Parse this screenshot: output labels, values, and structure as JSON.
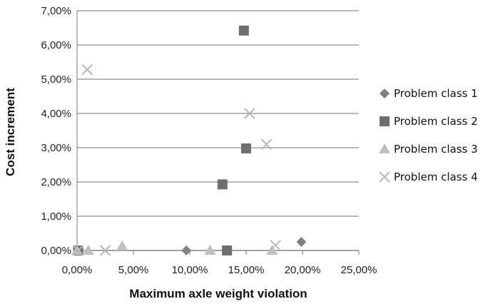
{
  "chart_data": {
    "type": "scatter",
    "title": "",
    "xlabel": "Maximum axle weight violation",
    "ylabel": "Cost increment",
    "xlim": [
      0,
      25
    ],
    "ylim": [
      0,
      7
    ],
    "x_ticks": [
      0,
      5,
      10,
      15,
      20,
      25
    ],
    "y_ticks": [
      0,
      1,
      2,
      3,
      4,
      5,
      6,
      7
    ],
    "x_tick_labels": [
      "0,00%",
      "5,00%",
      "10,00%",
      "15,00%",
      "20,00%",
      "25,00%"
    ],
    "y_tick_labels": [
      "0,00%",
      "1,00%",
      "2,00%",
      "3,00%",
      "4,00%",
      "5,00%",
      "6,00%",
      "7,00%"
    ],
    "grid": "horizontal",
    "legend_position": "right",
    "series": [
      {
        "name": "Problem class 1",
        "marker": "diamond",
        "color": "#808080",
        "points": [
          [
            9.7,
            0.0
          ],
          [
            19.9,
            0.25
          ]
        ]
      },
      {
        "name": "Problem class 2",
        "marker": "square",
        "color": "#6e6e6e",
        "points": [
          [
            0.1,
            0.0
          ],
          [
            13.3,
            0.0
          ],
          [
            12.9,
            1.93
          ],
          [
            15.0,
            2.98
          ],
          [
            14.8,
            6.42
          ]
        ]
      },
      {
        "name": "Problem class 3",
        "marker": "triangle",
        "color": "#c0c0c0",
        "points": [
          [
            0.0,
            0.0
          ],
          [
            1.0,
            0.0
          ],
          [
            4.0,
            0.13
          ],
          [
            11.8,
            0.0
          ],
          [
            17.3,
            0.0
          ]
        ]
      },
      {
        "name": "Problem class 4",
        "marker": "x",
        "color": "#b8b8b8",
        "points": [
          [
            0.1,
            0.0
          ],
          [
            0.9,
            5.28
          ],
          [
            2.5,
            0.0
          ],
          [
            15.3,
            4.0
          ],
          [
            16.8,
            3.1
          ],
          [
            17.6,
            0.15
          ]
        ]
      }
    ]
  }
}
